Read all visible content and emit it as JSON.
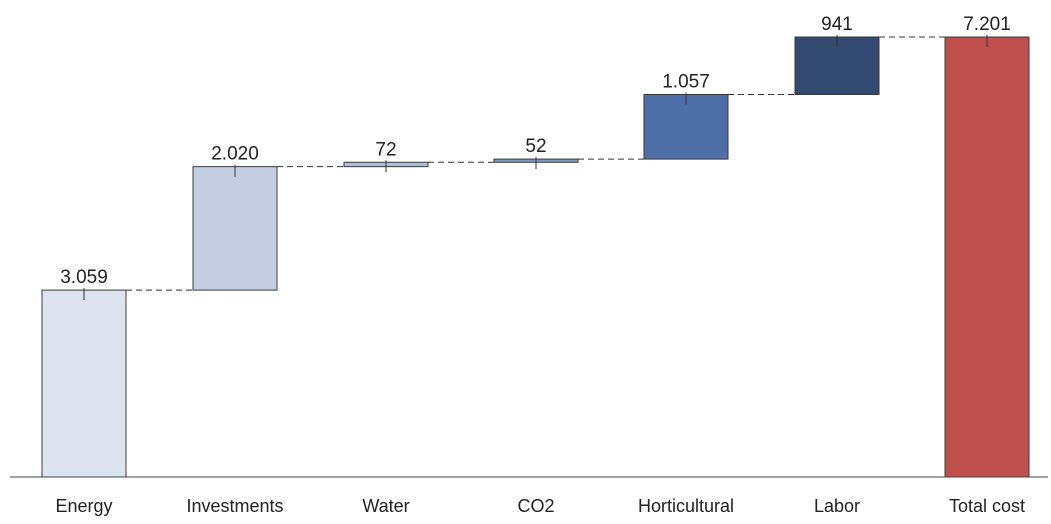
{
  "chart_data": {
    "type": "bar",
    "subtype": "waterfall",
    "categories": [
      "Energy",
      "Investments",
      "Water",
      "CO2",
      "Horticultural",
      "Labor",
      "Total cost"
    ],
    "values": [
      3059,
      2020,
      72,
      52,
      1057,
      941,
      7201
    ],
    "value_labels": [
      "3.059",
      "2.020",
      "72",
      "52",
      "1.057",
      "941",
      "7.201"
    ],
    "total_index": 6,
    "colors": [
      "#dde3ef",
      "#c3cfe1",
      "#aebfda",
      "#7f98c4",
      "#4d6ea6",
      "#33496f",
      "#c0504d"
    ],
    "title": "",
    "xlabel": "",
    "ylabel": "",
    "ylim": [
      0,
      7201
    ],
    "grid": false,
    "legend": "none"
  }
}
